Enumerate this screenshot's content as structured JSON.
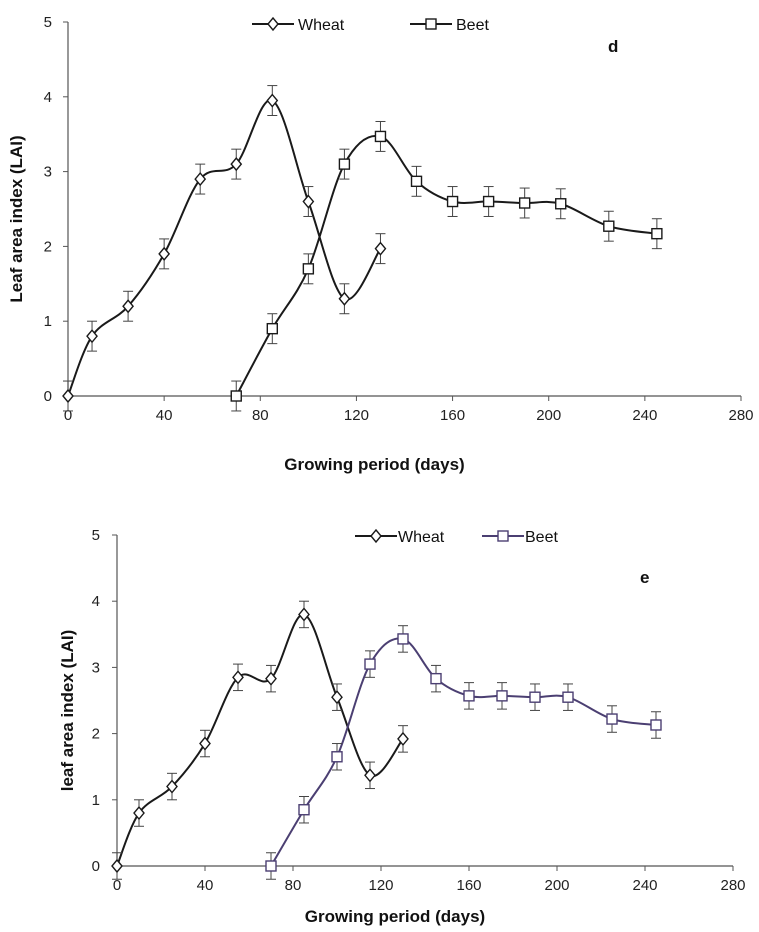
{
  "chart_data": [
    {
      "type": "line",
      "panel_label": "d",
      "xlabel": "Growing period (days)",
      "ylabel": "Leaf area index (LAI)",
      "xlim": [
        0,
        280
      ],
      "ylim": [
        0,
        5
      ],
      "xticks": [
        0,
        40,
        80,
        120,
        160,
        200,
        240,
        280
      ],
      "yticks": [
        0,
        1,
        2,
        3,
        4,
        5
      ],
      "legend_position": "top-center",
      "series": [
        {
          "name": "Wheat",
          "marker": "diamond",
          "color": "#1a1a1a",
          "x": [
            0,
            10,
            25,
            40,
            55,
            70,
            85,
            100,
            115,
            130
          ],
          "y": [
            0,
            0.8,
            1.2,
            1.9,
            2.9,
            3.1,
            3.95,
            2.6,
            1.3,
            1.97
          ],
          "err": [
            0.2,
            0.2,
            0.2,
            0.2,
            0.2,
            0.2,
            0.2,
            0.2,
            0.2,
            0.2
          ]
        },
        {
          "name": "Beet",
          "marker": "square",
          "color": "#1a1a1a",
          "x": [
            70,
            85,
            100,
            115,
            130,
            145,
            160,
            175,
            190,
            205,
            225,
            245
          ],
          "y": [
            0,
            0.9,
            1.7,
            3.1,
            3.47,
            2.87,
            2.6,
            2.6,
            2.58,
            2.57,
            2.27,
            2.17
          ],
          "err": [
            0.2,
            0.2,
            0.2,
            0.2,
            0.2,
            0.2,
            0.2,
            0.2,
            0.2,
            0.2,
            0.2,
            0.2
          ]
        }
      ]
    },
    {
      "type": "line",
      "panel_label": "e",
      "xlabel": "Growing period (days)",
      "ylabel": "leaf area index (LAI)",
      "xlim": [
        0,
        280
      ],
      "ylim": [
        0,
        5
      ],
      "xticks": [
        0,
        40,
        80,
        120,
        160,
        200,
        240,
        280
      ],
      "yticks": [
        0,
        1,
        2,
        3,
        4,
        5
      ],
      "legend_position": "top-center",
      "series": [
        {
          "name": "Wheat",
          "marker": "diamond",
          "color": "#1a1a1a",
          "x": [
            0,
            10,
            25,
            40,
            55,
            70,
            85,
            100,
            115,
            130
          ],
          "y": [
            0,
            0.8,
            1.2,
            1.85,
            2.85,
            2.83,
            3.8,
            2.55,
            1.37,
            1.92
          ],
          "err": [
            0.2,
            0.2,
            0.2,
            0.2,
            0.2,
            0.2,
            0.2,
            0.2,
            0.2,
            0.2
          ]
        },
        {
          "name": "Beet",
          "marker": "square",
          "color": "#4b3f72",
          "x": [
            70,
            85,
            100,
            115,
            130,
            145,
            160,
            175,
            190,
            205,
            225,
            245
          ],
          "y": [
            0,
            0.85,
            1.65,
            3.05,
            3.43,
            2.83,
            2.57,
            2.57,
            2.55,
            2.55,
            2.22,
            2.13
          ],
          "err": [
            0.2,
            0.2,
            0.2,
            0.2,
            0.2,
            0.2,
            0.2,
            0.2,
            0.2,
            0.2,
            0.2,
            0.2
          ]
        }
      ]
    }
  ]
}
